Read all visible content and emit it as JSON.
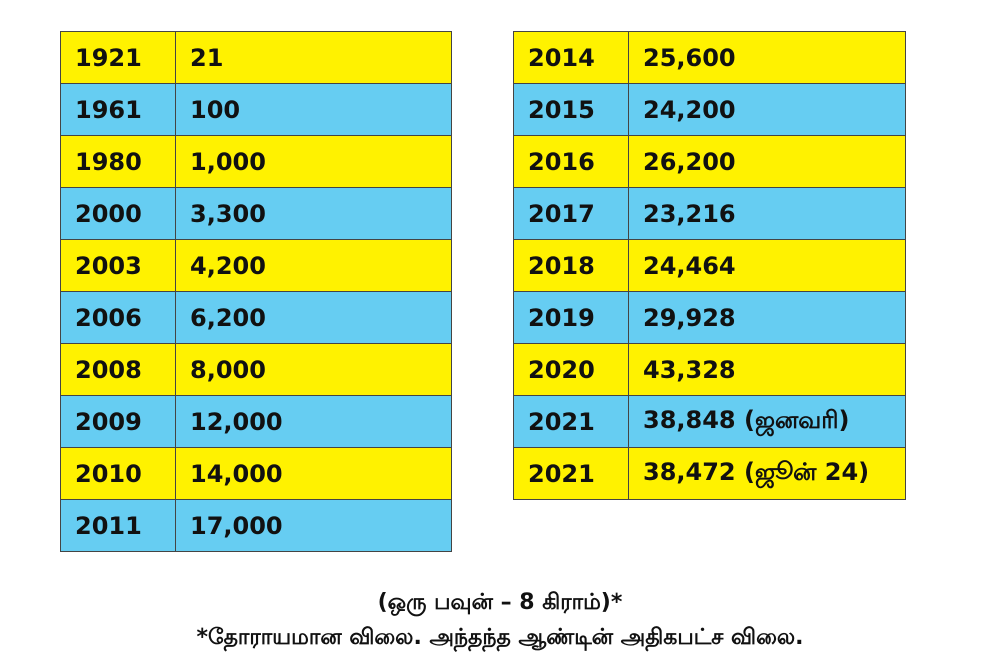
{
  "tables": [
    {
      "rows": [
        [
          "1921",
          "21"
        ],
        [
          "1961",
          "100"
        ],
        [
          "1980",
          "1,000"
        ],
        [
          "2000",
          "3,300"
        ],
        [
          "2003",
          "4,200"
        ],
        [
          "2006",
          "6,200"
        ],
        [
          "2008",
          "8,000"
        ],
        [
          "2009",
          "12,000"
        ],
        [
          "2010",
          "14,000"
        ],
        [
          "2011",
          "17,000"
        ]
      ]
    },
    {
      "rows": [
        [
          "2014",
          "25,600"
        ],
        [
          "2015",
          "24,200"
        ],
        [
          "2016",
          "26,200"
        ],
        [
          "2017",
          "23,216"
        ],
        [
          "2018",
          "24,464"
        ],
        [
          "2019",
          "29,928"
        ],
        [
          "2020",
          "43,328"
        ],
        [
          "2021",
          "38,848 (ஜனவரி)"
        ],
        [
          "2021",
          "38,472 (ஜூன் 24)"
        ]
      ]
    }
  ],
  "footnote": {
    "line1": "(ஒரு பவுன் – 8 கிராம்)*",
    "line2": "*தோராயமான விலை. அந்தந்த ஆண்டின் அதிகபட்ச விலை."
  }
}
